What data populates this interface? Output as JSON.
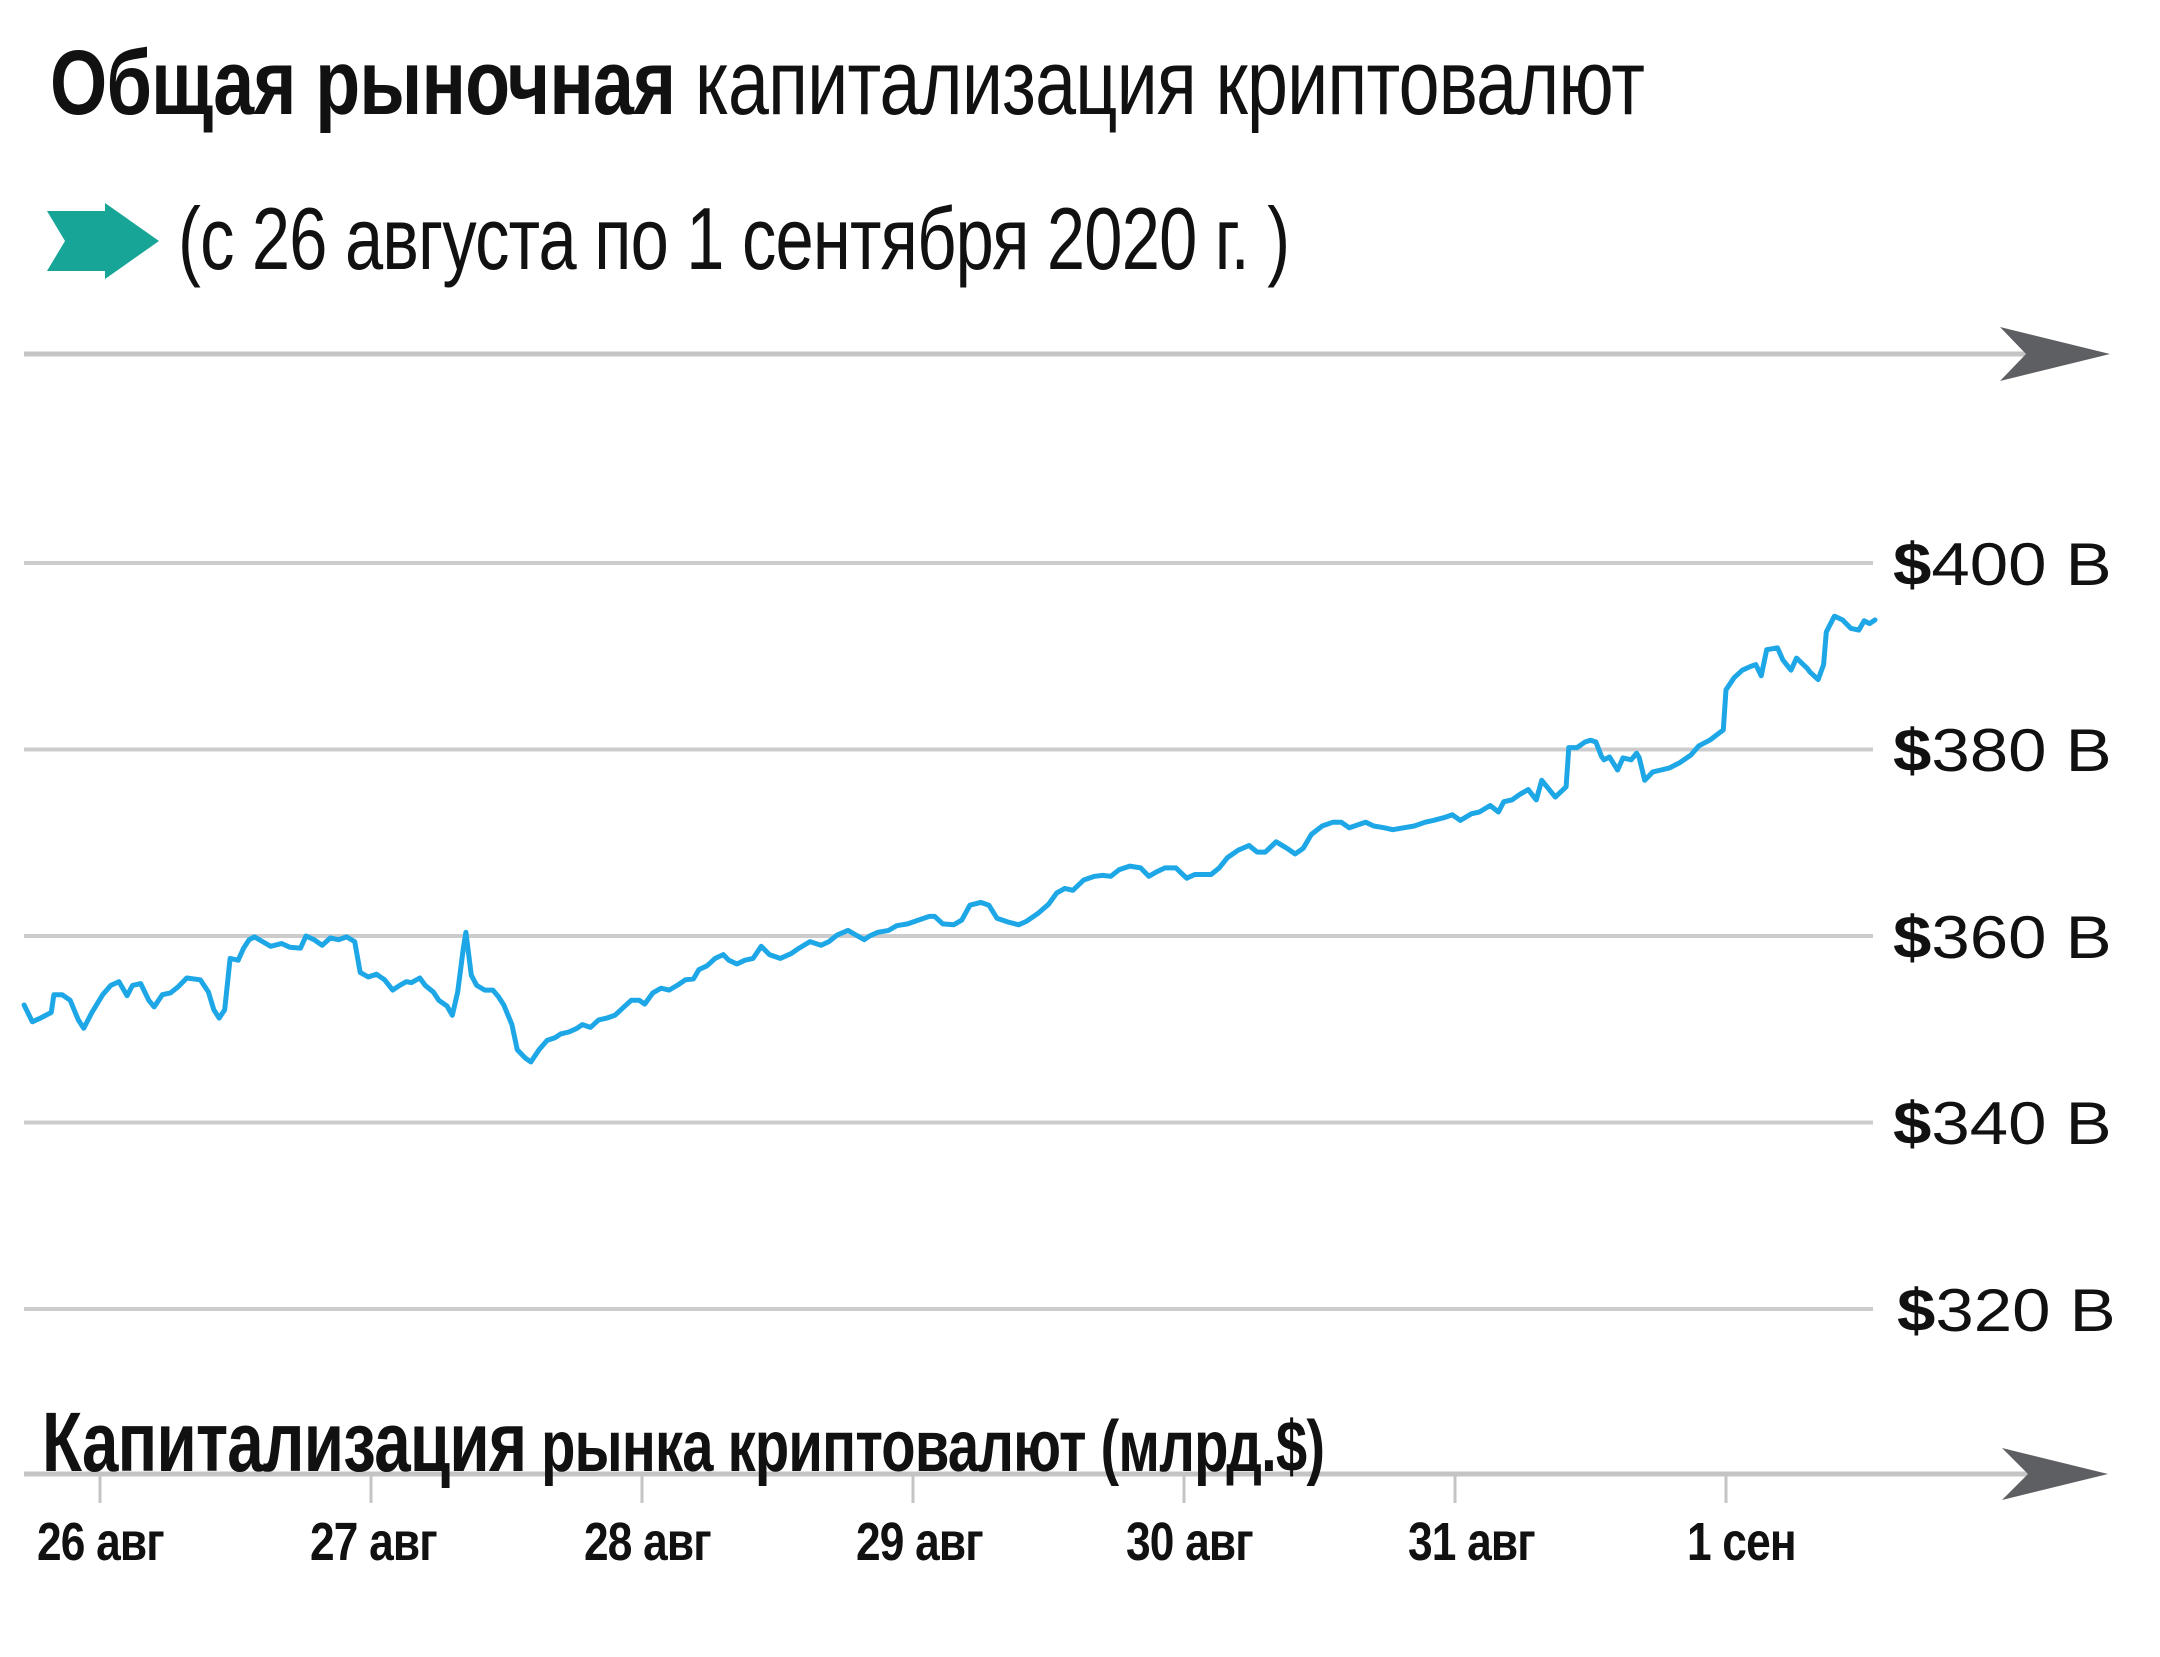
{
  "header": {
    "title_bold": "Общая рыночная",
    "title_regular": " капитализация криптовалют",
    "subtitle": "(с 26 августа по 1 сентября 2020 г. )",
    "subtitle_icon": "arrow-right-icon",
    "accent_color": "#16a596"
  },
  "axis_title": {
    "bold": "Капитализация",
    "regular": " рынка криптовалют (млрд.$)"
  },
  "colors": {
    "line": "#1ea7e6",
    "grid": "#cccccc",
    "axis_arrow": "#5d5f63",
    "text": "#111111"
  },
  "y_labels": [
    {
      "currency": "$",
      "amount": "400 B",
      "value": 400
    },
    {
      "currency": "$",
      "amount": "380 B",
      "value": 380
    },
    {
      "currency": "$",
      "amount": "360 B",
      "value": 360
    },
    {
      "currency": "$",
      "amount": "340 B",
      "value": 340
    },
    {
      "currency": "$",
      "amount": "320 B",
      "value": 320
    }
  ],
  "x_labels": [
    "26 авг",
    "27 авг",
    "28 авг",
    "29 авг",
    "30 авг",
    "31 авг",
    "1 сен"
  ],
  "chart_data": {
    "type": "line",
    "title": "Общая рыночная капитализация криптовалют",
    "subtitle": "(с 26 августа по 1 сентября 2020 г. )",
    "xlabel": "",
    "ylabel": "Капитализация рынка криптовалют (млрд.$)",
    "categories": [
      "26 авг",
      "27 авг",
      "28 авг",
      "29 авг",
      "30 авг",
      "31 авг",
      "1 сен"
    ],
    "yticks": [
      "$400 B",
      "$380 B",
      "$360 B",
      "$340 B",
      "$320 B"
    ],
    "ylim": [
      320,
      400
    ],
    "xlim_days": [
      -0.28,
      6.55
    ],
    "grid": true,
    "legend": "none",
    "series": [
      {
        "name": "Капитализация рынка криптовалют (млрд.$)",
        "x_unit": "days since 26 Aug 2020",
        "t": [
          -0.28,
          -0.25,
          -0.22,
          -0.18,
          -0.17,
          -0.14,
          -0.11,
          -0.08,
          -0.06,
          -0.03,
          0.01,
          0.04,
          0.07,
          0.1,
          0.12,
          0.15,
          0.18,
          0.2,
          0.23,
          0.26,
          0.29,
          0.32,
          0.37,
          0.4,
          0.42,
          0.44,
          0.46,
          0.48,
          0.51,
          0.53,
          0.55,
          0.57,
          0.6,
          0.63,
          0.67,
          0.7,
          0.74,
          0.76,
          0.79,
          0.82,
          0.85,
          0.88,
          0.91,
          0.94,
          0.96,
          0.99,
          1.02,
          1.05,
          1.08,
          1.1,
          1.13,
          1.15,
          1.18,
          1.2,
          1.23,
          1.25,
          1.28,
          1.3,
          1.32,
          1.34,
          1.35,
          1.37,
          1.39,
          1.42,
          1.45,
          1.47,
          1.49,
          1.52,
          1.54,
          1.57,
          1.59,
          1.62,
          1.65,
          1.68,
          1.7,
          1.73,
          1.76,
          1.78,
          1.81,
          1.84,
          1.87,
          1.9,
          1.93,
          1.96,
          1.99,
          2.01,
          2.04,
          2.07,
          2.1,
          2.13,
          2.16,
          2.19,
          2.21,
          2.24,
          2.27,
          2.3,
          2.32,
          2.35,
          2.38,
          2.41,
          2.44,
          2.47,
          2.51,
          2.55,
          2.58,
          2.62,
          2.66,
          2.69,
          2.72,
          2.76,
          2.79,
          2.82,
          2.84,
          2.87,
          2.91,
          2.94,
          2.98,
          3.02,
          3.06,
          3.08,
          3.11,
          3.15,
          3.18,
          3.21,
          3.25,
          3.28,
          3.31,
          3.35,
          3.39,
          3.42,
          3.46,
          3.5,
          3.53,
          3.56,
          3.59,
          3.63,
          3.67,
          3.7,
          3.73,
          3.76,
          3.8,
          3.84,
          3.87,
          3.9,
          3.93,
          3.97,
          4.01,
          4.04,
          4.1,
          4.13,
          4.16,
          4.2,
          4.24,
          4.27,
          4.3,
          4.34,
          4.38,
          4.41,
          4.44,
          4.47,
          4.51,
          4.55,
          4.58,
          4.61,
          4.64,
          4.67,
          4.7,
          4.74,
          4.77,
          4.81,
          4.85,
          4.89,
          4.92,
          4.96,
          4.99,
          5.02,
          5.06,
          5.09,
          5.13,
          5.16,
          5.18,
          5.21,
          5.24,
          5.27,
          5.3,
          5.32,
          5.37,
          5.41,
          5.42,
          5.45,
          5.48,
          5.5,
          5.52,
          5.54,
          5.55,
          5.57,
          5.6,
          5.62,
          5.65,
          5.67,
          5.68,
          5.7,
          5.73,
          5.76,
          5.79,
          5.83,
          5.87,
          5.9,
          5.94,
          5.99,
          6.0,
          6.03,
          6.06,
          6.09,
          6.11,
          6.13,
          6.15,
          6.19,
          6.21,
          6.24,
          6.26,
          6.3,
          6.31,
          6.34,
          6.36,
          6.37,
          6.4,
          6.43,
          6.46,
          6.49,
          6.51,
          6.53,
          6.55
        ],
        "values": [
          352.6,
          350.8,
          351.2,
          351.8,
          353.7,
          353.7,
          353.1,
          351.0,
          350.1,
          351.8,
          353.7,
          354.7,
          355.1,
          353.6,
          354.7,
          354.9,
          353.1,
          352.4,
          353.7,
          353.9,
          354.6,
          355.5,
          355.3,
          354.0,
          352.1,
          351.2,
          352.1,
          357.6,
          357.4,
          358.7,
          359.6,
          359.9,
          359.4,
          358.9,
          359.2,
          358.8,
          358.7,
          360.0,
          359.6,
          359.0,
          359.8,
          359.6,
          359.9,
          359.4,
          356.1,
          355.6,
          355.9,
          355.3,
          354.2,
          354.6,
          355.1,
          355.0,
          355.5,
          354.7,
          354.0,
          353.1,
          352.5,
          351.5,
          354.0,
          358.5,
          360.4,
          355.8,
          354.7,
          354.2,
          354.2,
          353.5,
          352.6,
          350.5,
          347.8,
          346.9,
          346.5,
          347.8,
          348.8,
          349.1,
          349.5,
          349.7,
          350.1,
          350.5,
          350.2,
          351.0,
          351.2,
          351.5,
          352.3,
          353.1,
          353.1,
          352.7,
          353.9,
          354.4,
          354.2,
          354.7,
          355.3,
          355.4,
          356.4,
          356.8,
          357.6,
          358.0,
          357.4,
          357.0,
          357.4,
          357.6,
          358.9,
          358.0,
          357.6,
          358.1,
          358.7,
          359.4,
          359.0,
          359.4,
          360.1,
          360.6,
          360.1,
          359.6,
          360.0,
          360.4,
          360.6,
          361.1,
          361.3,
          361.7,
          362.1,
          362.1,
          361.3,
          361.2,
          361.7,
          363.3,
          363.6,
          363.3,
          361.9,
          361.5,
          361.2,
          361.6,
          362.4,
          363.4,
          364.6,
          365.1,
          364.9,
          366.0,
          366.4,
          366.5,
          366.4,
          367.1,
          367.5,
          367.3,
          366.4,
          366.9,
          367.3,
          367.3,
          366.2,
          366.6,
          366.6,
          367.3,
          368.4,
          369.2,
          369.7,
          369.0,
          369.0,
          370.1,
          369.4,
          368.8,
          369.4,
          370.9,
          371.8,
          372.2,
          372.2,
          371.6,
          371.9,
          372.2,
          371.8,
          371.6,
          371.4,
          371.6,
          371.8,
          372.2,
          372.4,
          372.7,
          373.0,
          372.4,
          373.1,
          373.3,
          374.0,
          373.3,
          374.4,
          374.6,
          375.2,
          375.7,
          374.6,
          376.7,
          374.9,
          376.0,
          380.2,
          380.2,
          380.8,
          381.0,
          380.8,
          379.3,
          378.9,
          379.2,
          377.8,
          379.1,
          378.9,
          379.6,
          379.1,
          376.7,
          377.6,
          377.8,
          378.0,
          378.6,
          379.4,
          380.4,
          381.0,
          382.1,
          386.4,
          387.7,
          388.5,
          388.9,
          389.1,
          387.9,
          390.7,
          390.9,
          389.6,
          388.5,
          389.8,
          388.7,
          388.3,
          387.5,
          389.1,
          392.6,
          394.3,
          393.9,
          393.0,
          392.8,
          393.8,
          393.5,
          393.9
        ]
      }
    ]
  }
}
